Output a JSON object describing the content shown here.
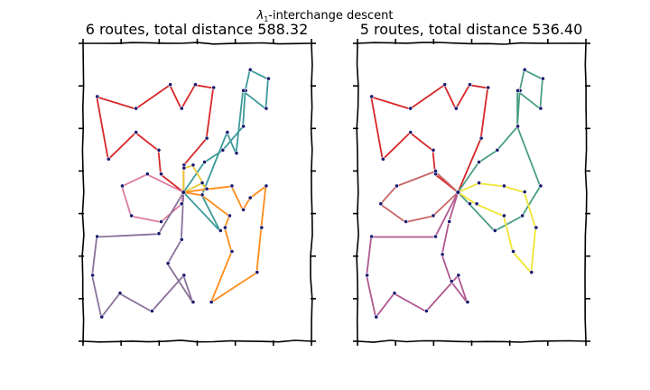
{
  "figure": {
    "suptitle_symbol": "λ",
    "suptitle_subscript": "1",
    "suptitle_rest": "-interchange descent"
  },
  "chart_data": [
    {
      "type": "scatter",
      "subtype": "vehicle-routing",
      "title": "6 routes, total distance 588.32",
      "xlabel": "",
      "ylabel": "",
      "xlim": [
        0,
        100
      ],
      "ylim": [
        0,
        100
      ],
      "grid": false,
      "tick_labels": "none",
      "depot": [
        44,
        50
      ],
      "routes": [
        {
          "color": "#d62728",
          "points": [
            [
              44,
              50
            ],
            [
              34,
              56
            ],
            [
              33,
              64
            ],
            [
              23,
              70
            ],
            [
              11,
              61
            ],
            [
              6,
              82
            ],
            [
              23,
              78
            ],
            [
              38,
              86
            ],
            [
              43,
              78
            ],
            [
              49,
              86
            ],
            [
              57,
              85
            ],
            [
              54,
              68
            ],
            [
              44,
              59
            ],
            [
              44,
              50
            ]
          ]
        },
        {
          "color": "#3c9a9a",
          "points": [
            [
              44,
              50
            ],
            [
              53,
              60
            ],
            [
              61,
              64
            ],
            [
              70,
              72
            ],
            [
              71,
              84
            ],
            [
              73,
              91
            ],
            [
              81,
              88
            ],
            [
              80,
              78
            ],
            [
              70,
              84
            ],
            [
              67,
              63
            ],
            [
              63,
              70
            ],
            [
              52,
              49
            ],
            [
              60,
              37
            ],
            [
              44,
              50
            ]
          ]
        },
        {
          "color": "#e8c832",
          "points": [
            [
              44,
              50
            ],
            [
              52,
              53
            ],
            [
              54,
              51
            ],
            [
              48,
              59
            ],
            [
              44,
              58
            ],
            [
              44,
              50
            ]
          ]
        },
        {
          "color": "#ff8c1a",
          "points": [
            [
              44,
              50
            ],
            [
              54,
              51
            ],
            [
              65,
              52
            ],
            [
              70,
              44
            ],
            [
              73,
              48
            ],
            [
              80,
              52
            ],
            [
              78,
              38
            ],
            [
              76,
              23
            ],
            [
              56,
              13
            ],
            [
              65,
              30
            ],
            [
              62,
              38
            ],
            [
              64,
              42
            ],
            [
              52,
              49
            ],
            [
              44,
              50
            ]
          ]
        },
        {
          "color": "#de7aa0",
          "points": [
            [
              44,
              50
            ],
            [
              28,
              56
            ],
            [
              17,
              52
            ],
            [
              21,
              42
            ],
            [
              34,
              40
            ],
            [
              43,
              46
            ],
            [
              44,
              50
            ]
          ]
        },
        {
          "color": "#8a719a",
          "points": [
            [
              44,
              50
            ],
            [
              33,
              36
            ],
            [
              6,
              35
            ],
            [
              4,
              22
            ],
            [
              8,
              8
            ],
            [
              16,
              16
            ],
            [
              30,
              10
            ],
            [
              44,
              22
            ],
            [
              48,
              13
            ],
            [
              37,
              26
            ],
            [
              43,
              34
            ],
            [
              44,
              50
            ]
          ]
        }
      ],
      "stops": [
        [
          34,
          56
        ],
        [
          33,
          64
        ],
        [
          23,
          70
        ],
        [
          11,
          61
        ],
        [
          6,
          82
        ],
        [
          23,
          78
        ],
        [
          38,
          86
        ],
        [
          43,
          78
        ],
        [
          49,
          86
        ],
        [
          57,
          85
        ],
        [
          54,
          68
        ],
        [
          44,
          59
        ],
        [
          53,
          60
        ],
        [
          61,
          64
        ],
        [
          70,
          72
        ],
        [
          71,
          84
        ],
        [
          73,
          91
        ],
        [
          81,
          88
        ],
        [
          80,
          78
        ],
        [
          70,
          84
        ],
        [
          67,
          63
        ],
        [
          63,
          70
        ],
        [
          52,
          49
        ],
        [
          60,
          37
        ],
        [
          52,
          53
        ],
        [
          54,
          51
        ],
        [
          48,
          59
        ],
        [
          44,
          58
        ],
        [
          65,
          52
        ],
        [
          70,
          44
        ],
        [
          73,
          48
        ],
        [
          80,
          52
        ],
        [
          78,
          38
        ],
        [
          76,
          23
        ],
        [
          56,
          13
        ],
        [
          65,
          30
        ],
        [
          62,
          38
        ],
        [
          64,
          42
        ],
        [
          28,
          56
        ],
        [
          17,
          52
        ],
        [
          21,
          42
        ],
        [
          34,
          40
        ],
        [
          43,
          46
        ],
        [
          33,
          36
        ],
        [
          6,
          35
        ],
        [
          4,
          22
        ],
        [
          8,
          8
        ],
        [
          16,
          16
        ],
        [
          30,
          10
        ],
        [
          44,
          22
        ],
        [
          48,
          13
        ],
        [
          37,
          26
        ],
        [
          43,
          34
        ]
      ]
    },
    {
      "type": "scatter",
      "subtype": "vehicle-routing",
      "title": "5 routes, total distance 536.40",
      "xlabel": "",
      "ylabel": "",
      "xlim": [
        0,
        100
      ],
      "ylim": [
        0,
        100
      ],
      "grid": false,
      "tick_labels": "none",
      "depot": [
        44,
        50
      ],
      "routes": [
        {
          "color": "#d62728",
          "points": [
            [
              44,
              50
            ],
            [
              34,
              56
            ],
            [
              33,
              64
            ],
            [
              23,
              70
            ],
            [
              11,
              61
            ],
            [
              6,
              82
            ],
            [
              23,
              78
            ],
            [
              38,
              86
            ],
            [
              43,
              78
            ],
            [
              49,
              86
            ],
            [
              57,
              85
            ],
            [
              54,
              68
            ],
            [
              44,
              50
            ]
          ]
        },
        {
          "color": "#4a9e84",
          "points": [
            [
              44,
              50
            ],
            [
              53,
              60
            ],
            [
              61,
              64
            ],
            [
              70,
              72
            ],
            [
              71,
              84
            ],
            [
              73,
              91
            ],
            [
              81,
              88
            ],
            [
              80,
              78
            ],
            [
              70,
              84
            ],
            [
              70,
              72
            ],
            [
              80,
              52
            ],
            [
              72,
              42
            ],
            [
              60,
              37
            ],
            [
              49,
              46
            ],
            [
              44,
              50
            ]
          ]
        },
        {
          "color": "#f0e432",
          "points": [
            [
              44,
              50
            ],
            [
              53,
              53
            ],
            [
              64,
              52
            ],
            [
              73,
              50
            ],
            [
              78,
              38
            ],
            [
              76,
              23
            ],
            [
              68,
              30
            ],
            [
              64,
              42
            ],
            [
              52,
              46
            ],
            [
              44,
              50
            ]
          ]
        },
        {
          "color": "#c86464",
          "points": [
            [
              44,
              50
            ],
            [
              34,
              57
            ],
            [
              17,
              52
            ],
            [
              10,
              46
            ],
            [
              21,
              40
            ],
            [
              33,
              42
            ],
            [
              44,
              50
            ]
          ]
        },
        {
          "color": "#b05890",
          "points": [
            [
              44,
              50
            ],
            [
              34,
              35
            ],
            [
              6,
              35
            ],
            [
              4,
              22
            ],
            [
              8,
              8
            ],
            [
              16,
              16
            ],
            [
              30,
              10
            ],
            [
              44,
              22
            ],
            [
              48,
              13
            ],
            [
              41,
              20
            ],
            [
              37,
              29
            ],
            [
              40,
              40
            ],
            [
              44,
              50
            ]
          ]
        }
      ],
      "stops": [
        [
          34,
          56
        ],
        [
          33,
          64
        ],
        [
          23,
          70
        ],
        [
          11,
          61
        ],
        [
          6,
          82
        ],
        [
          23,
          78
        ],
        [
          38,
          86
        ],
        [
          43,
          78
        ],
        [
          49,
          86
        ],
        [
          57,
          85
        ],
        [
          54,
          68
        ],
        [
          53,
          60
        ],
        [
          61,
          64
        ],
        [
          70,
          72
        ],
        [
          71,
          84
        ],
        [
          73,
          91
        ],
        [
          81,
          88
        ],
        [
          80,
          78
        ],
        [
          70,
          84
        ],
        [
          80,
          52
        ],
        [
          72,
          42
        ],
        [
          60,
          37
        ],
        [
          49,
          46
        ],
        [
          53,
          53
        ],
        [
          64,
          52
        ],
        [
          73,
          50
        ],
        [
          78,
          38
        ],
        [
          76,
          23
        ],
        [
          68,
          30
        ],
        [
          64,
          42
        ],
        [
          52,
          46
        ],
        [
          34,
          57
        ],
        [
          17,
          52
        ],
        [
          10,
          46
        ],
        [
          21,
          40
        ],
        [
          33,
          42
        ],
        [
          34,
          35
        ],
        [
          6,
          35
        ],
        [
          4,
          22
        ],
        [
          8,
          8
        ],
        [
          16,
          16
        ],
        [
          30,
          10
        ],
        [
          44,
          22
        ],
        [
          48,
          13
        ],
        [
          41,
          20
        ],
        [
          37,
          29
        ],
        [
          40,
          40
        ]
      ]
    }
  ]
}
